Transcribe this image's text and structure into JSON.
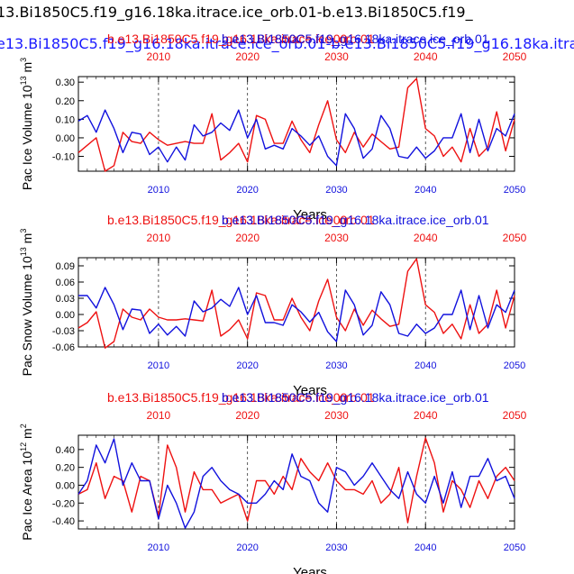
{
  "page": {
    "title_black": "13.Bi1850C5.f19_g16.18ka.itrace.ice_orb.01-b.e13.Bi1850C5.f19_",
    "title_blue": "e13.Bi1850C5.f19_g16.18ka.itrace.ice_orb.01-b.e13.Bi1850C5.f19_g16.18ka.itra"
  },
  "colors": {
    "red": "#ee1111",
    "blue": "#1111dd",
    "axis": "#000000"
  },
  "chart_data": [
    {
      "type": "line",
      "ylabel": "Pac Ice Volume 10^13 m^3",
      "ylabel_base": "Pac Ice Volume 10",
      "ylabel_exp": "13",
      "ylabel_unit": " m",
      "ylabel_unit_exp": "3",
      "xlabel": "Years",
      "xlim": [
        2001,
        2050
      ],
      "ylim": [
        -0.18,
        0.33
      ],
      "yticks": [
        0.3,
        0.2,
        0.1,
        0.0,
        -0.1
      ],
      "ytick_labels": [
        "0.30",
        "0.20",
        "0.10",
        "0.00",
        "-0.10"
      ],
      "xticks": [
        2010,
        2020,
        2030,
        2040,
        2050
      ],
      "xtick_labels": [
        "2010",
        "2020",
        "2030",
        "2040",
        "2050"
      ],
      "top_title_red": "b.e13.Bi1850C5.f19_g16.18ka.itrace.ice_orb.01",
      "top_title_red_visible": "b.e13.Bi1850C5.f1",
      "top_title_blue": "b.e13.Bi1850C5.f19_g16.18ka.itrace.ice_orb.01",
      "top_title_mid": "b.e13.Bi1850C5.f1900",
      "dashed_x": [
        2010,
        2020,
        2030,
        2040
      ],
      "x": [
        2001,
        2002,
        2003,
        2004,
        2005,
        2006,
        2007,
        2008,
        2009,
        2010,
        2011,
        2012,
        2013,
        2014,
        2015,
        2016,
        2017,
        2018,
        2019,
        2020,
        2021,
        2022,
        2023,
        2024,
        2025,
        2026,
        2027,
        2028,
        2029,
        2030,
        2031,
        2032,
        2033,
        2034,
        2035,
        2036,
        2037,
        2038,
        2039,
        2040,
        2041,
        2042,
        2043,
        2044,
        2045,
        2046,
        2047,
        2048,
        2049,
        2050
      ],
      "series": [
        {
          "color": "red",
          "values": [
            -0.08,
            -0.04,
            0.0,
            -0.18,
            -0.15,
            0.03,
            -0.02,
            -0.03,
            0.03,
            -0.01,
            -0.04,
            -0.03,
            -0.02,
            -0.03,
            -0.03,
            0.13,
            -0.12,
            -0.08,
            -0.03,
            -0.13,
            0.12,
            0.1,
            -0.03,
            -0.03,
            0.09,
            -0.01,
            -0.08,
            0.07,
            0.2,
            -0.01,
            -0.08,
            0.03,
            -0.05,
            0.02,
            -0.02,
            -0.06,
            -0.05,
            0.27,
            0.32,
            0.05,
            0.01,
            -0.1,
            -0.05,
            -0.13,
            0.05,
            -0.1,
            -0.05,
            0.14,
            -0.07,
            0.1
          ]
        },
        {
          "color": "blue",
          "values": [
            0.09,
            0.12,
            0.03,
            0.15,
            0.05,
            -0.08,
            0.03,
            0.02,
            -0.09,
            -0.05,
            -0.13,
            -0.05,
            -0.12,
            0.07,
            0.01,
            0.03,
            0.08,
            0.04,
            0.15,
            0.0,
            0.1,
            -0.06,
            -0.04,
            -0.06,
            0.05,
            0.01,
            -0.04,
            0.01,
            -0.1,
            -0.15,
            0.13,
            0.05,
            -0.11,
            -0.06,
            0.12,
            0.05,
            -0.1,
            -0.11,
            -0.05,
            -0.11,
            -0.07,
            0.0,
            0.0,
            0.13,
            -0.08,
            0.1,
            -0.07,
            0.05,
            0.01,
            0.13
          ]
        }
      ]
    },
    {
      "type": "line",
      "ylabel": "Pac Snow Volume 10^13 m^3",
      "ylabel_base": "Pac Snow Volume 10",
      "ylabel_exp": "13",
      "ylabel_unit": " m",
      "ylabel_unit_exp": "3",
      "xlabel": "Years",
      "xlim": [
        2001,
        2050
      ],
      "ylim": [
        -0.06,
        0.105
      ],
      "yticks": [
        0.09,
        0.06,
        0.03,
        0.0,
        -0.03,
        -0.06
      ],
      "ytick_labels": [
        "0.09",
        "0.06",
        "0.03",
        "0.00",
        "-0.03",
        "-0.06"
      ],
      "xticks": [
        2010,
        2020,
        2030,
        2040,
        2050
      ],
      "xtick_labels": [
        "2010",
        "2020",
        "2030",
        "2040",
        "2050"
      ],
      "top_title_red": "b.e13.Bi1850C5.f19_g16.18ka.itrace.ice_orb.01",
      "top_title_red_visible": "b.e13.Bi1850C5.f1",
      "top_title_blue": "b.e13.Bi1850C5.f19_g16.18ka.itrace.ice_orb.01",
      "top_title_mid": "b.e13.Bi1850C5.f1900",
      "dashed_x": [
        2010,
        2020,
        2030,
        2040
      ],
      "x": [
        2001,
        2002,
        2003,
        2004,
        2005,
        2006,
        2007,
        2008,
        2009,
        2010,
        2011,
        2012,
        2013,
        2014,
        2015,
        2016,
        2017,
        2018,
        2019,
        2020,
        2021,
        2022,
        2023,
        2024,
        2025,
        2026,
        2027,
        2028,
        2029,
        2030,
        2031,
        2032,
        2033,
        2034,
        2035,
        2036,
        2037,
        2038,
        2039,
        2040,
        2041,
        2042,
        2043,
        2044,
        2045,
        2046,
        2047,
        2048,
        2049,
        2050
      ],
      "series": [
        {
          "color": "red",
          "values": [
            -0.025,
            -0.015,
            0.005,
            -0.062,
            -0.05,
            0.01,
            -0.005,
            -0.01,
            0.01,
            -0.005,
            -0.01,
            -0.01,
            -0.008,
            -0.01,
            -0.012,
            0.045,
            -0.04,
            -0.028,
            -0.01,
            -0.045,
            0.04,
            0.035,
            -0.01,
            -0.01,
            0.03,
            -0.005,
            -0.03,
            0.025,
            0.065,
            -0.005,
            -0.03,
            0.01,
            -0.02,
            0.008,
            -0.008,
            -0.022,
            -0.018,
            0.08,
            0.103,
            0.018,
            0.004,
            -0.035,
            -0.018,
            -0.045,
            0.018,
            -0.035,
            -0.018,
            0.045,
            -0.025,
            0.035
          ]
        },
        {
          "color": "blue",
          "values": [
            0.035,
            0.035,
            0.012,
            0.05,
            0.018,
            -0.028,
            0.01,
            0.008,
            -0.035,
            -0.018,
            -0.038,
            -0.022,
            -0.04,
            0.025,
            0.005,
            0.012,
            0.028,
            0.015,
            0.05,
            0.0,
            0.035,
            -0.015,
            -0.015,
            -0.02,
            0.018,
            0.005,
            -0.014,
            0.004,
            -0.032,
            -0.05,
            0.045,
            0.018,
            -0.038,
            -0.02,
            0.042,
            0.018,
            -0.035,
            -0.04,
            -0.018,
            -0.035,
            -0.025,
            0.0,
            0.0,
            0.045,
            -0.028,
            0.035,
            -0.025,
            0.018,
            0.004,
            0.045
          ]
        }
      ]
    },
    {
      "type": "line",
      "ylabel": "Pac Ice Area 10^12 m^2",
      "ylabel_base": "Pac Ice Area 10",
      "ylabel_exp": "12",
      "ylabel_unit": " m",
      "ylabel_unit_exp": "2",
      "xlabel": "Years",
      "xlim": [
        2001,
        2050
      ],
      "ylim": [
        -0.49,
        0.56
      ],
      "yticks": [
        0.4,
        0.2,
        0.0,
        -0.2,
        -0.4
      ],
      "ytick_labels": [
        "0.40",
        "0.20",
        "0.00",
        "-0.20",
        "-0.40"
      ],
      "xticks": [
        2010,
        2020,
        2030,
        2040,
        2050
      ],
      "xtick_labels": [
        "2010",
        "2020",
        "2030",
        "2040",
        "2050"
      ],
      "top_title_red": "b.e13.Bi1850C5.f19_g16.18ka.itrace.ice_orb.01",
      "top_title_red_visible": "b.e13.Bi1850C5.f1",
      "top_title_blue": "b.e13.Bi1850C5.f19_g16.18ka.itrace.ice_orb.01",
      "top_title_mid": "b.e13.Bi1850C5.f1900",
      "dashed_x": [
        2010,
        2020,
        2030,
        2040
      ],
      "x": [
        2001,
        2002,
        2003,
        2004,
        2005,
        2006,
        2007,
        2008,
        2009,
        2010,
        2011,
        2012,
        2013,
        2014,
        2015,
        2016,
        2017,
        2018,
        2019,
        2020,
        2021,
        2022,
        2023,
        2024,
        2025,
        2026,
        2027,
        2028,
        2029,
        2030,
        2031,
        2032,
        2033,
        2034,
        2035,
        2036,
        2037,
        2038,
        2039,
        2040,
        2041,
        2042,
        2043,
        2044,
        2045,
        2046,
        2047,
        2048,
        2049,
        2050
      ],
      "series": [
        {
          "color": "red",
          "values": [
            -0.1,
            -0.05,
            0.25,
            -0.15,
            0.1,
            0.05,
            -0.3,
            0.1,
            0.05,
            -0.35,
            0.45,
            0.2,
            -0.3,
            0.15,
            -0.05,
            -0.05,
            -0.2,
            -0.15,
            -0.1,
            -0.4,
            0.05,
            0.05,
            -0.1,
            0.1,
            -0.05,
            0.3,
            0.15,
            0.05,
            0.25,
            0.05,
            -0.05,
            -0.05,
            -0.1,
            0.05,
            -0.2,
            -0.1,
            0.2,
            -0.42,
            0.1,
            0.53,
            0.25,
            -0.3,
            0.05,
            -0.05,
            -0.25,
            0.05,
            -0.15,
            0.1,
            0.2,
            0.05
          ]
        },
        {
          "color": "blue",
          "values": [
            -0.1,
            0.05,
            0.45,
            0.25,
            0.52,
            0.0,
            0.25,
            0.05,
            0.05,
            -0.38,
            0.0,
            -0.2,
            -0.48,
            -0.3,
            0.1,
            0.2,
            0.05,
            -0.05,
            -0.1,
            -0.2,
            -0.2,
            -0.1,
            0.05,
            -0.05,
            0.35,
            0.1,
            0.05,
            -0.2,
            -0.3,
            0.2,
            0.15,
            0.0,
            0.1,
            0.25,
            0.1,
            -0.05,
            -0.15,
            0.15,
            -0.1,
            -0.2,
            0.1,
            -0.2,
            0.15,
            -0.25,
            0.1,
            0.1,
            0.3,
            0.05,
            0.1,
            -0.15
          ]
        }
      ]
    }
  ]
}
